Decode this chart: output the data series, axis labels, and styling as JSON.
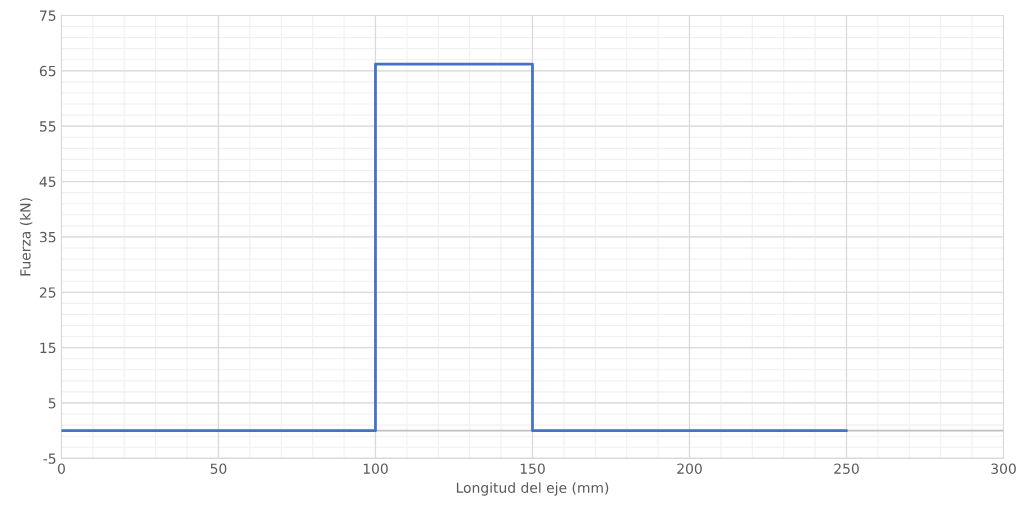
{
  "chart_data": {
    "type": "line",
    "xlabel": "Longitud del eje (mm)",
    "ylabel": "Fuerza (kN)",
    "x": [
      0,
      100,
      100,
      150,
      150,
      250
    ],
    "series": [
      {
        "color": "#4472c4",
        "values": [
          0,
          0,
          66.2,
          66.2,
          0,
          0
        ]
      }
    ],
    "xlim": [
      0,
      300
    ],
    "xticks": [
      0,
      50,
      100,
      150,
      200,
      250,
      300
    ],
    "ylim": [
      -5,
      75
    ],
    "yticks": [
      -5,
      5,
      15,
      25,
      35,
      45,
      55,
      65,
      75
    ],
    "ref_lines": [
      {
        "axis": "y",
        "value": 0,
        "color": "#bfbfbf"
      }
    ],
    "grid": true,
    "marker": "none",
    "line_style": "solid"
  }
}
